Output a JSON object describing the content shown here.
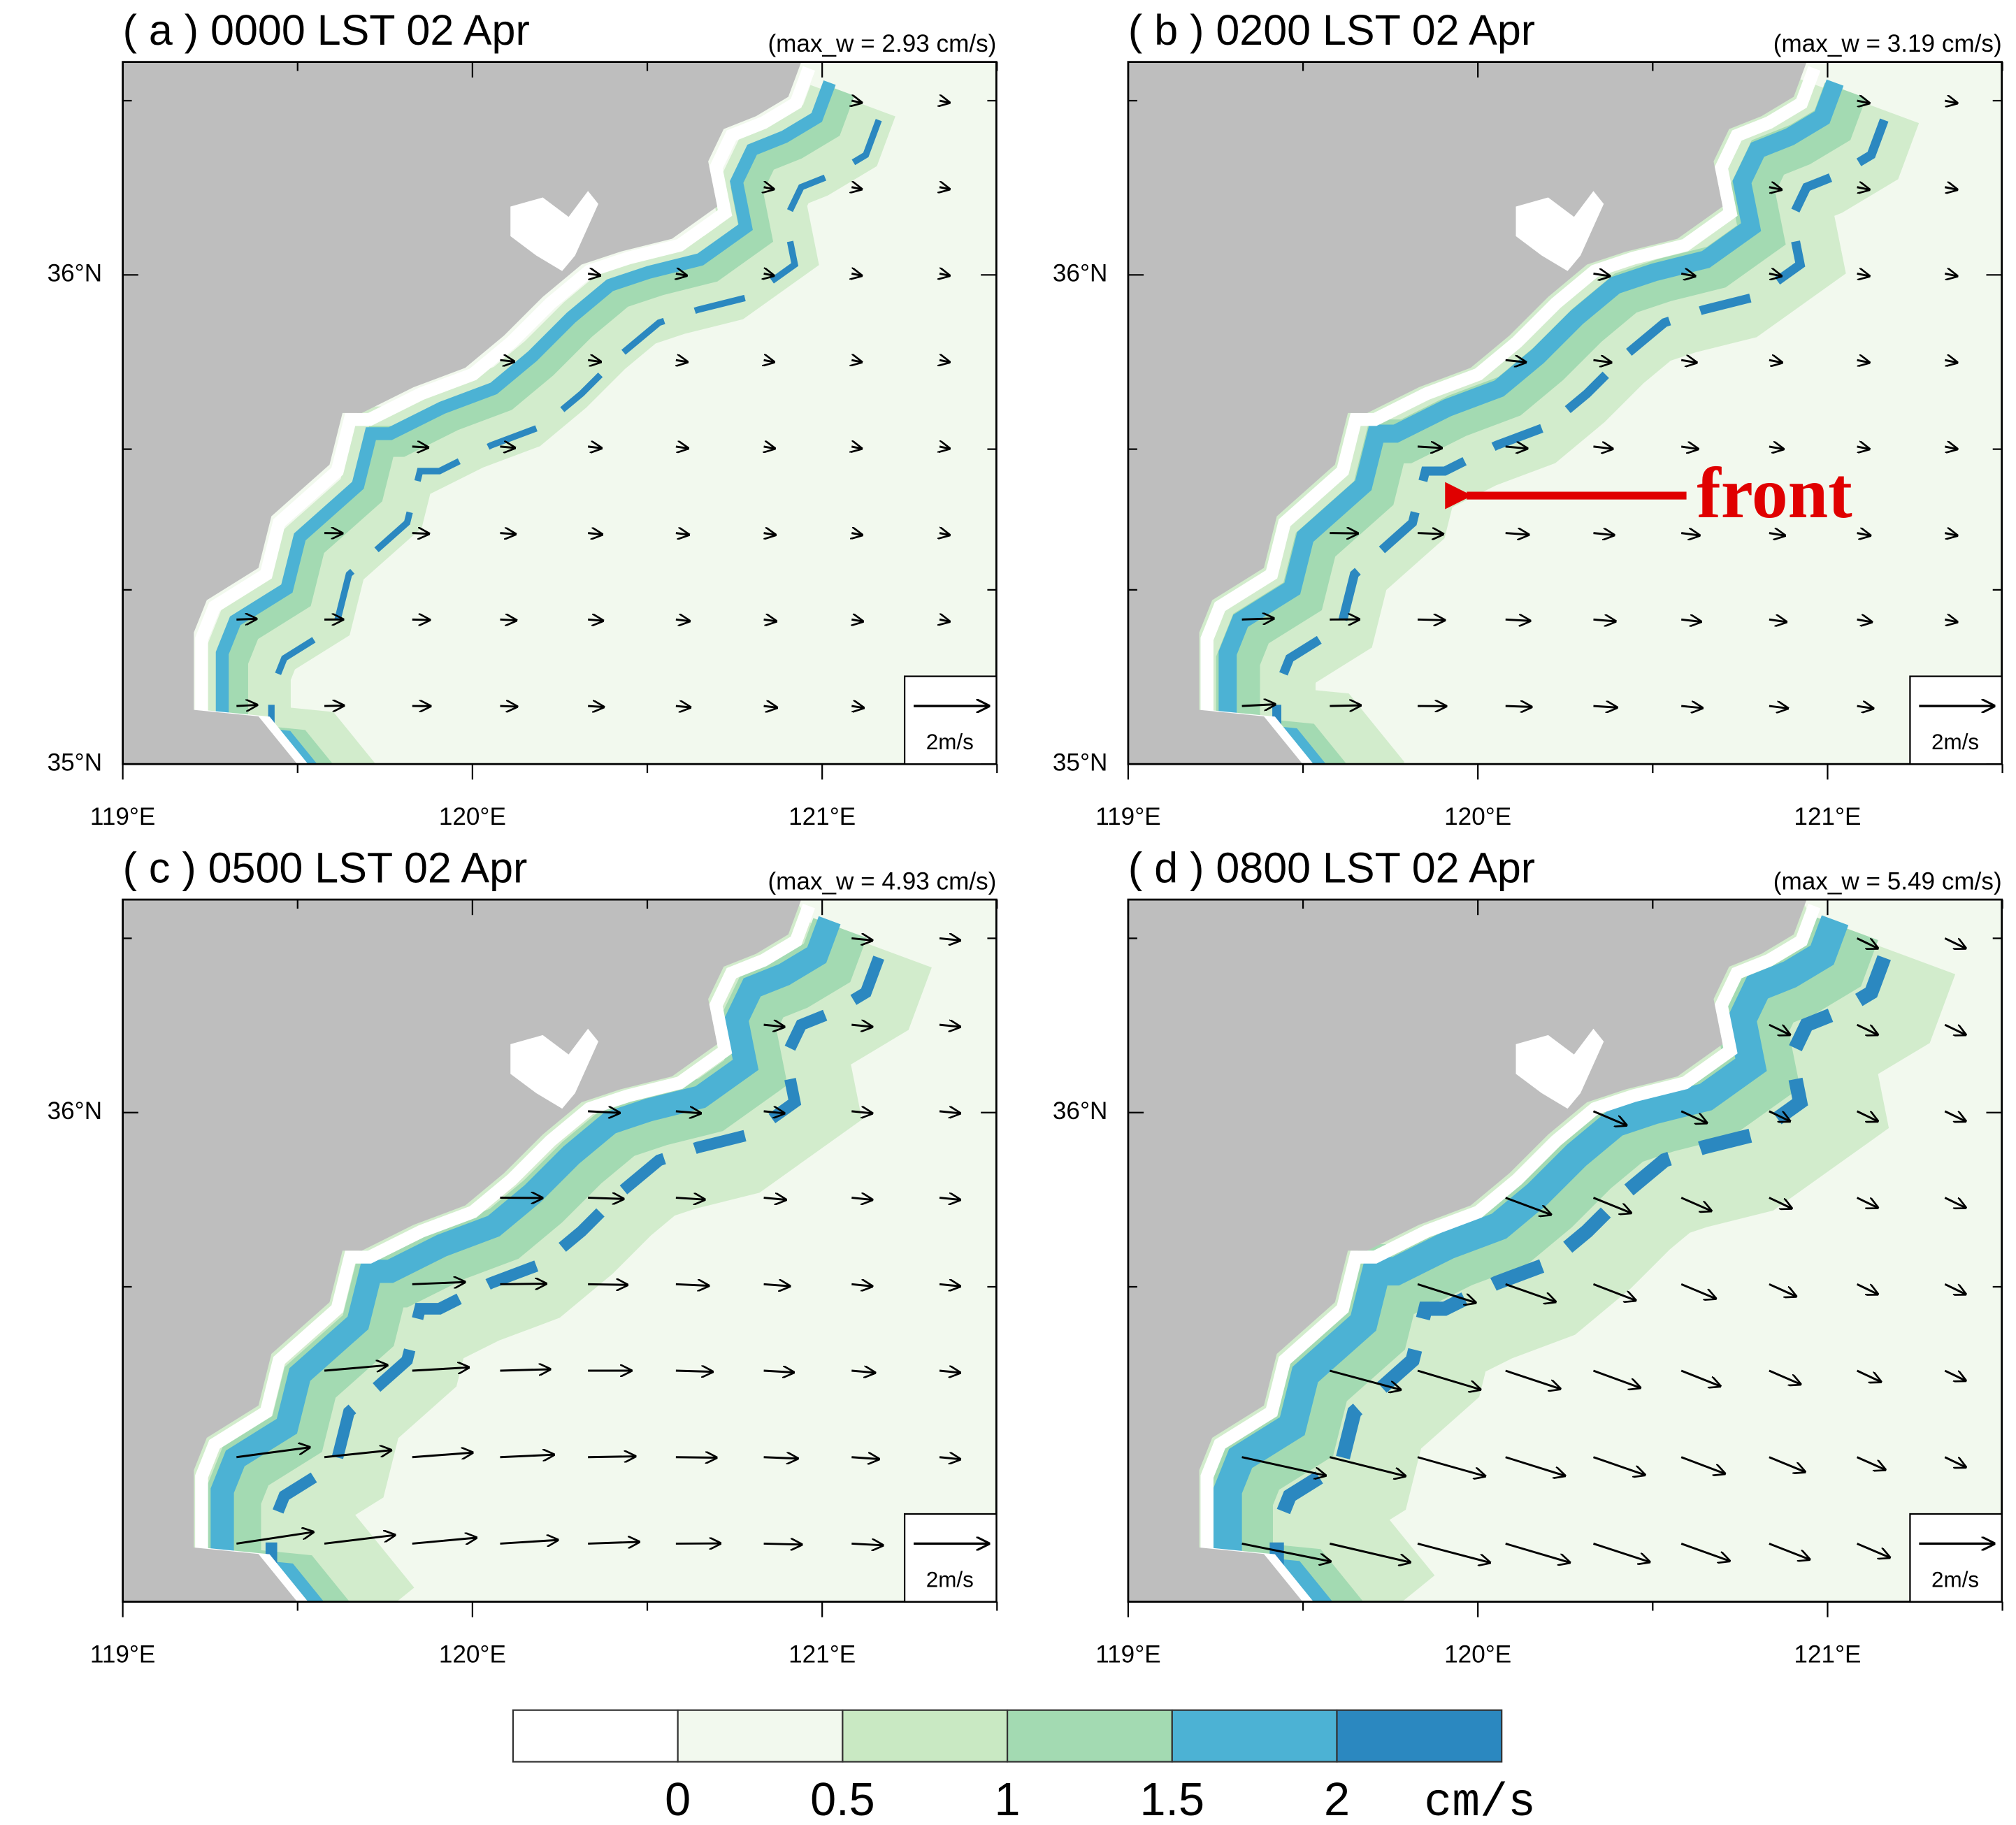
{
  "panels": [
    {
      "title": "( a ) 0000 LST 02 Apr",
      "max_w": "(max_w =  2.93 cm/s)"
    },
    {
      "title": "( b ) 0200 LST 02 Apr",
      "max_w": "(max_w =  3.19 cm/s)"
    },
    {
      "title": "( c ) 0500 LST 02 Apr",
      "max_w": "(max_w =  4.93 cm/s)"
    },
    {
      "title": "( d ) 0800 LST 02 Apr",
      "max_w": "(max_w =  5.49 cm/s)"
    }
  ],
  "x_ticks": [
    "119°E",
    "120°E",
    "121°E"
  ],
  "y_ticks": [
    "36°N",
    "35°N"
  ],
  "reference_vector": "2m/s",
  "annotation": "front",
  "colorbar": {
    "ticks": [
      0,
      0.5,
      1,
      1.5,
      2
    ],
    "unit": "cm/s",
    "colors": [
      "#ffffff",
      "#f2f9ee",
      "#c9e9c3",
      "#a3dab2",
      "#4cb2d4",
      "#2b88c0"
    ]
  }
}
